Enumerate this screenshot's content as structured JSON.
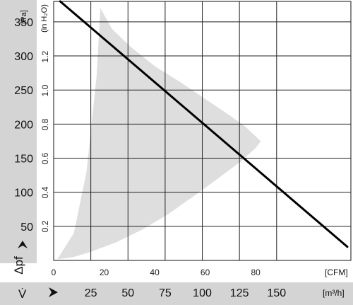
{
  "chart_data": {
    "type": "area",
    "title": "",
    "y_pa": {
      "unit": "[Pa]",
      "symbol": "Δpf",
      "ticks": [
        50,
        100,
        150,
        200,
        250,
        300,
        350
      ],
      "range": [
        0,
        380
      ]
    },
    "y_inh2o": {
      "unit": "(in H₂O)",
      "ticks": [
        "0.2",
        "0.4",
        "0.6",
        "0.8",
        "1.0",
        "1.2"
      ]
    },
    "x_cfm": {
      "unit": "[CFM]",
      "ticks": [
        0,
        20,
        40,
        60,
        80
      ],
      "range": [
        0,
        117.7
      ]
    },
    "x_m3h": {
      "unit": "[m³/h]",
      "symbol": "V̇",
      "ticks": [
        25,
        50,
        75,
        100,
        125,
        150
      ]
    },
    "grid": true,
    "series": [
      {
        "kind": "line",
        "color": "#000000",
        "x": [
          2.6,
          116.3
        ],
        "y": [
          380,
          20
        ]
      },
      {
        "kind": "area",
        "color": "#dedede",
        "outline_x": [
          1.5,
          8,
          13,
          17,
          18.5,
          23,
          30,
          40,
          50,
          60,
          70,
          76,
          82,
          80,
          74,
          65,
          55,
          45,
          35,
          25,
          15,
          8,
          2,
          1.5
        ],
        "outline_y": [
          2,
          40,
          130,
          270,
          370,
          340,
          315,
          285,
          262,
          237,
          212,
          196,
          175,
          165,
          145,
          120,
          93,
          67,
          45,
          27,
          13,
          5,
          2,
          2
        ]
      }
    ]
  }
}
